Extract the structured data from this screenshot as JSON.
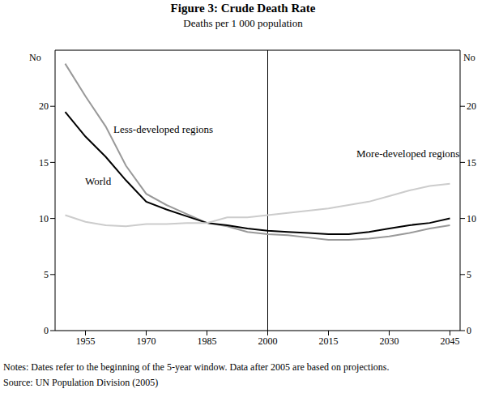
{
  "chart_data": {
    "type": "line",
    "title": "Figure 3: Crude Death Rate",
    "subtitle": "Deaths per 1 000 population",
    "ylabel": "No",
    "y2label": "No",
    "x": [
      1950,
      1955,
      1960,
      1965,
      1970,
      1975,
      1980,
      1985,
      1990,
      1995,
      2000,
      2005,
      2010,
      2015,
      2020,
      2025,
      2030,
      2035,
      2040,
      2045
    ],
    "series": [
      {
        "name": "Less-developed regions",
        "color": "#999999",
        "values": [
          23.8,
          20.9,
          18.2,
          14.7,
          12.2,
          11.2,
          10.4,
          9.6,
          9.3,
          8.8,
          8.6,
          8.5,
          8.3,
          8.1,
          8.1,
          8.2,
          8.4,
          8.7,
          9.1,
          9.4
        ]
      },
      {
        "name": "World",
        "color": "#000000",
        "values": [
          19.5,
          17.3,
          15.5,
          13.4,
          11.5,
          10.8,
          10.2,
          9.6,
          9.4,
          9.1,
          8.9,
          8.8,
          8.7,
          8.6,
          8.6,
          8.8,
          9.1,
          9.4,
          9.6,
          10.0
        ]
      },
      {
        "name": "More-developed regions",
        "color": "#cccccc",
        "values": [
          10.3,
          9.7,
          9.4,
          9.3,
          9.5,
          9.5,
          9.6,
          9.6,
          10.1,
          10.1,
          10.3,
          10.5,
          10.7,
          10.9,
          11.2,
          11.5,
          12.0,
          12.5,
          12.9,
          13.1
        ]
      }
    ],
    "xlim": [
      1947.5,
      2047.5
    ],
    "xticks": [
      1955,
      1970,
      1985,
      2000,
      2015,
      2030,
      2045
    ],
    "ylim": [
      0,
      25
    ],
    "yticks": [
      0,
      5,
      10,
      15,
      20
    ],
    "y2lim": [
      0,
      25
    ],
    "y2ticks": [
      0,
      5,
      10,
      15,
      20
    ],
    "grid": true,
    "vertical_line": 2000,
    "notes": "Notes:   Dates refer to the beginning of the 5-year window. Data after 2005 are based on projections.",
    "source": "Source:  UN Population Division (2005)"
  }
}
